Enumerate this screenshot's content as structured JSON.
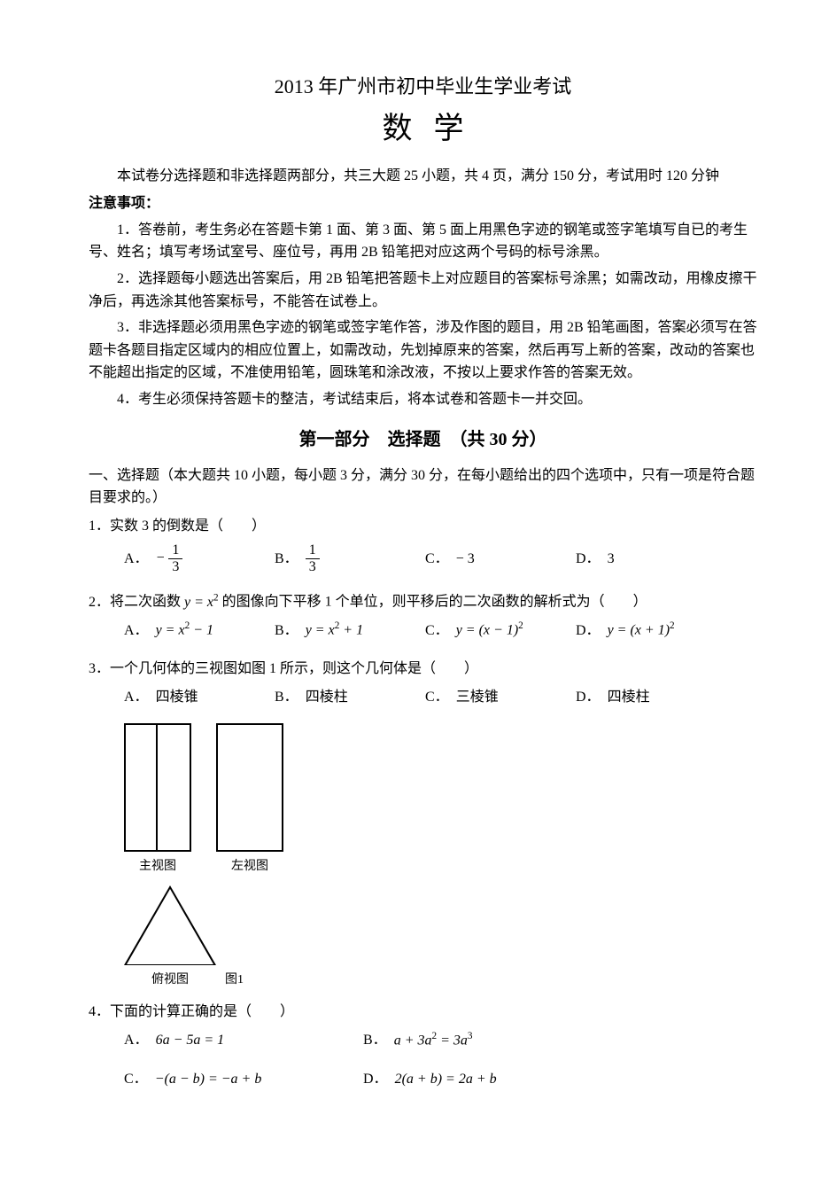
{
  "title": "2013 年广州市初中毕业生学业考试",
  "subject": "数学",
  "intro": "本试卷分选择题和非选择题两部分，共三大题 25 小题，共 4 页，满分 150 分，考试用时 120 分钟",
  "notice_header": "注意事项：",
  "notices": [
    "1．答卷前，考生务必在答题卡第 1 面、第 3 面、第 5 面上用黑色字迹的钢笔或签字笔填写自已的考生号、姓名；填写考场试室号、座位号，再用 2B 铅笔把对应这两个号码的标号涂黑。",
    "2．选择题每小题选出答案后，用 2B 铅笔把答题卡上对应题目的答案标号涂黑；如需改动，用橡皮擦干净后，再选涂其他答案标号，不能答在试卷上。",
    "3．非选择题必须用黑色字迹的钢笔或签字笔作答，涉及作图的题目，用 2B 铅笔画图，答案必须写在答题卡各题目指定区域内的相应位置上，如需改动，先划掉原来的答案，然后再写上新的答案，改动的答案也不能超出指定的区域，不准使用铅笔，圆珠笔和涂改液，不按以上要求作答的答案无效。",
    "4．考生必须保持答题卡的整洁，考试结束后，将本试卷和答题卡一并交回。"
  ],
  "part_header": "第一部分　选择题　（共 30 分）",
  "section_header": "一、选择题（本大题共 10 小题，每小题 3 分，满分 30 分，在每小题给出的四个选项中，只有一项是符合题目要求的。）",
  "q1": {
    "stem": "实数 3 的倒数是（　　）",
    "A_prefix": "− ",
    "A_num": "1",
    "A_den": "3",
    "B_num": "1",
    "B_den": "3",
    "C": "− 3",
    "D": "3"
  },
  "q2": {
    "stem_pre": "将二次函数 ",
    "stem_mid": " 的图像向下平移 1 个单位，则平移后的二次函数的解析式为（　　）",
    "A": "y = x² − 1",
    "B": "y = x² + 1",
    "C": "y = (x − 1)²",
    "D": "y = (x + 1)²"
  },
  "q3": {
    "stem": "一个几何体的三视图如图 1 所示，则这个几何体是（　　）",
    "A": "四棱锥",
    "B": "四棱柱",
    "C": "三棱锥",
    "D": "四棱柱",
    "front_label": "主视图",
    "side_label": "左视图",
    "top_label": "俯视图",
    "fig_label": "图1"
  },
  "q4": {
    "stem": "下面的计算正确的是（　　）",
    "A": "6a − 5a = 1",
    "B": "a + 3a² = 3a³",
    "C": "−(a − b) = −a + b",
    "D": "2(a + b) = 2a + b"
  },
  "labels": {
    "A": "A．",
    "B": "B．",
    "C": "C．",
    "D": "D．"
  }
}
